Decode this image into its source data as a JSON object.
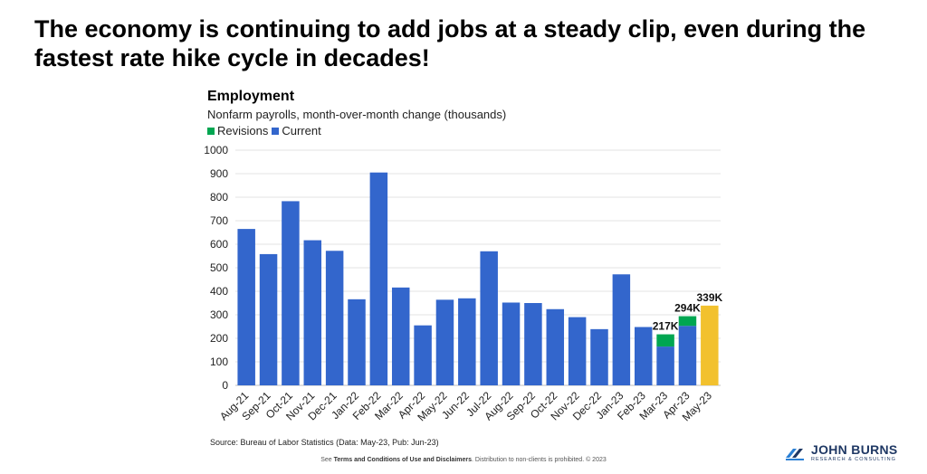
{
  "slide": {
    "title": "The economy is continuing to add jobs at a steady clip, even during the fastest rate hike cycle in decades!"
  },
  "chart_data": {
    "type": "bar",
    "title": "Employment",
    "subtitle": "Nonfarm payrolls, month-over-month change (thousands)",
    "legend": [
      {
        "label": "Revisions",
        "color": "#00a651"
      },
      {
        "label": "Current",
        "color": "#3366cc"
      }
    ],
    "categories": [
      "Aug-21",
      "Sep-21",
      "Oct-21",
      "Nov-21",
      "Dec-21",
      "Jan-22",
      "Feb-22",
      "Mar-22",
      "Apr-22",
      "May-22",
      "Jun-22",
      "Jul-22",
      "Aug-22",
      "Sep-22",
      "Oct-22",
      "Nov-22",
      "Dec-22",
      "Jan-23",
      "Feb-23",
      "Mar-23",
      "Apr-23",
      "May-23"
    ],
    "series": [
      {
        "name": "Current",
        "color": "#3366cc",
        "values": [
          665,
          558,
          783,
          617,
          572,
          366,
          905,
          416,
          255,
          364,
          370,
          570,
          352,
          350,
          324,
          290,
          239,
          472,
          248,
          165,
          253,
          339
        ]
      },
      {
        "name": "Revisions",
        "color": "#00a651",
        "values": [
          0,
          0,
          0,
          0,
          0,
          0,
          0,
          0,
          0,
          0,
          0,
          0,
          0,
          0,
          0,
          0,
          0,
          0,
          0,
          52,
          41,
          0
        ]
      }
    ],
    "highlight": {
      "category": "May-23",
      "color": "#f2c12e"
    },
    "data_labels": [
      {
        "category": "Mar-23",
        "text": "217K"
      },
      {
        "category": "Apr-23",
        "text": "294K"
      },
      {
        "category": "May-23",
        "text": "339K"
      }
    ],
    "yticks": [
      0,
      100,
      200,
      300,
      400,
      500,
      600,
      700,
      800,
      900,
      1000
    ],
    "ylim": [
      0,
      1000
    ],
    "xlabel": "",
    "ylabel": ""
  },
  "source": "Source: Bureau of Labor Statistics (Data: May-23, Pub: Jun-23)",
  "footer": {
    "prefix": "See",
    "link": "Terms and Conditions of Use and Disclaimers",
    "suffix": ". Distribution to non-clients is prohibited. © 2023"
  },
  "logo": {
    "name": "JOHN BURNS",
    "tagline": "RESEARCH & CONSULTING"
  }
}
